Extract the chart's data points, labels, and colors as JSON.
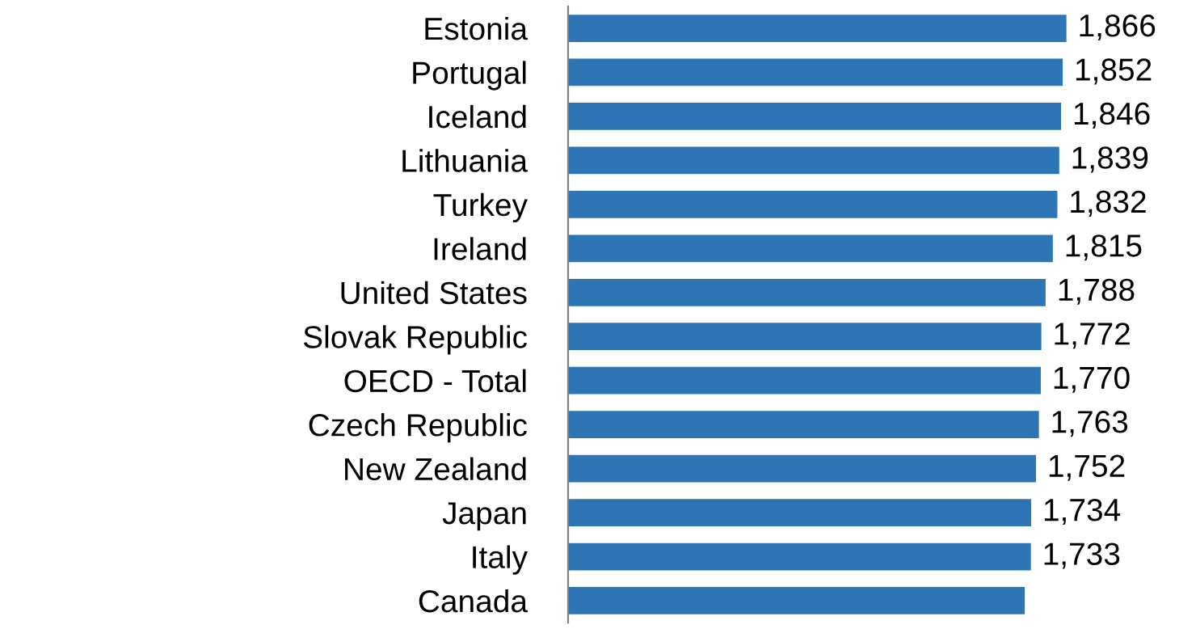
{
  "chart_data": {
    "type": "bar",
    "orientation": "horizontal",
    "color": "#2e75b6",
    "categories": [
      "Estonia",
      "Portugal",
      "Iceland",
      "Lithuania",
      "Turkey",
      "Ireland",
      "United States",
      "Slovak Republic",
      "OECD - Total",
      "Czech Republic",
      "New Zealand",
      "Japan",
      "Italy",
      "Canada"
    ],
    "values": [
      1866,
      1852,
      1846,
      1839,
      1832,
      1815,
      1788,
      1772,
      1770,
      1763,
      1752,
      1734,
      1733,
      1710
    ],
    "value_labels": [
      "1,866",
      "1,852",
      "1,846",
      "1,839",
      "1,832",
      "1,815",
      "1,788",
      "1,772",
      "1,770",
      "1,763",
      "1,752",
      "1,734",
      "1,733",
      null
    ],
    "grid": false,
    "legend": false
  }
}
